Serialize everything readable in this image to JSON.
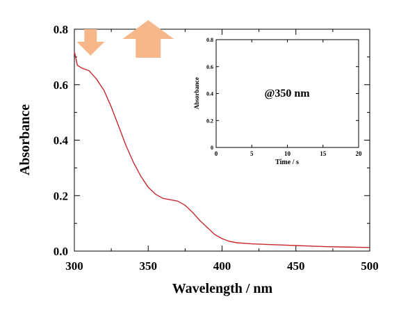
{
  "chart_data": [
    {
      "type": "line",
      "xlabel": "Wavelength / nm",
      "ylabel": "Absorbance",
      "xlim": [
        300,
        500
      ],
      "ylim": [
        0.0,
        0.8
      ],
      "x_ticks": [
        "300",
        "350",
        "400",
        "450",
        "500"
      ],
      "y_ticks": [
        "0.0",
        "0.2",
        "0.4",
        "0.6",
        "0.8"
      ],
      "grid": false,
      "series": [
        {
          "color": "#c8282d",
          "x": [
            300,
            302,
            305,
            310,
            315,
            320,
            325,
            330,
            335,
            340,
            345,
            350,
            355,
            360,
            365,
            370,
            375,
            380,
            385,
            390,
            395,
            400,
            405,
            410,
            420,
            430,
            440,
            450,
            460,
            470,
            480,
            490,
            500
          ],
          "y": [
            0.72,
            0.67,
            0.66,
            0.65,
            0.62,
            0.58,
            0.52,
            0.45,
            0.38,
            0.32,
            0.27,
            0.23,
            0.205,
            0.19,
            0.185,
            0.18,
            0.165,
            0.14,
            0.11,
            0.085,
            0.06,
            0.045,
            0.035,
            0.03,
            0.026,
            0.024,
            0.022,
            0.02,
            0.018,
            0.016,
            0.015,
            0.014,
            0.013
          ]
        }
      ],
      "annotations": [
        {
          "symbol": "down-arrow",
          "color": "#f6b88a",
          "x": 311
        },
        {
          "symbol": "up-arrow",
          "color": "#f6b88a",
          "x": 350
        }
      ]
    },
    {
      "type": "line",
      "inset": true,
      "xlabel": "Time / s",
      "ylabel": "Absorbance",
      "xlim": [
        0,
        20
      ],
      "ylim": [
        0,
        0.8
      ],
      "x_ticks": [
        "0",
        "5",
        "10",
        "15",
        "20"
      ],
      "y_ticks": [
        "0",
        "0.2",
        "0.4",
        "0.6",
        "0.8"
      ],
      "annotation": "@350 nm",
      "series": []
    }
  ]
}
